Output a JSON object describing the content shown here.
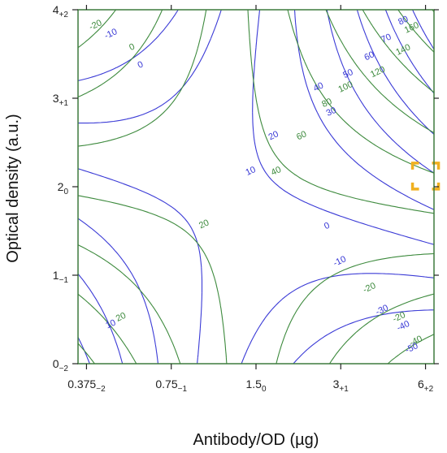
{
  "chart_data": {
    "type": "contour",
    "xlabel": "Antibody/OD (µg)",
    "ylabel": "Optical density (a.u.)",
    "x_ticks": [
      {
        "main": "0.375",
        "sub": "−2",
        "value": -2
      },
      {
        "main": "0.75",
        "sub": "−1",
        "value": -1
      },
      {
        "main": "1.5",
        "sub": "0",
        "value": 0
      },
      {
        "main": "3",
        "sub": "+1",
        "value": 1
      },
      {
        "main": "6",
        "sub": "+2",
        "value": 2
      }
    ],
    "y_ticks": [
      {
        "main": "0",
        "sub": "−2",
        "value": -2
      },
      {
        "main": "1",
        "sub": "−1",
        "value": -1
      },
      {
        "main": "2",
        "sub": "0",
        "value": 0
      },
      {
        "main": "3",
        "sub": "+1",
        "value": 1
      },
      {
        "main": "4",
        "sub": "+2",
        "value": 2
      }
    ],
    "xlim": [
      -2.1,
      2.1
    ],
    "ylim": [
      -2.0,
      2.0
    ],
    "series": [
      {
        "name": "",
        "color": "#3a3ad6",
        "levels": [
          -50,
          -40,
          -30,
          -10,
          0,
          10,
          20,
          30,
          40,
          50,
          60,
          70,
          80
        ]
      },
      {
        "name": "",
        "color": "#3d8a3d",
        "levels": [
          -40,
          -20,
          0,
          20,
          40,
          60,
          80,
          100,
          120,
          140,
          160
        ]
      }
    ],
    "contour_labels": [
      {
        "text": "-20",
        "color": "green",
        "x": -1.88,
        "y": 1.8
      },
      {
        "text": "-10",
        "color": "blue",
        "x": -1.7,
        "y": 1.7
      },
      {
        "text": "0",
        "color": "green",
        "x": -1.45,
        "y": 1.55
      },
      {
        "text": "0",
        "color": "blue",
        "x": -1.35,
        "y": 1.35
      },
      {
        "text": "80",
        "color": "blue",
        "x": 1.75,
        "y": 1.85
      },
      {
        "text": "160",
        "color": "green",
        "x": 1.85,
        "y": 1.77
      },
      {
        "text": "70",
        "color": "blue",
        "x": 1.55,
        "y": 1.65
      },
      {
        "text": "140",
        "color": "green",
        "x": 1.75,
        "y": 1.52
      },
      {
        "text": "60",
        "color": "blue",
        "x": 1.35,
        "y": 1.45
      },
      {
        "text": "120",
        "color": "green",
        "x": 1.45,
        "y": 1.27
      },
      {
        "text": "50",
        "color": "blue",
        "x": 1.1,
        "y": 1.25
      },
      {
        "text": "100",
        "color": "green",
        "x": 1.07,
        "y": 1.1
      },
      {
        "text": "40",
        "color": "blue",
        "x": 0.75,
        "y": 1.1
      },
      {
        "text": "80",
        "color": "green",
        "x": 0.85,
        "y": 0.92
      },
      {
        "text": "30",
        "color": "blue",
        "x": 0.9,
        "y": 0.82
      },
      {
        "text": "60",
        "color": "green",
        "x": 0.55,
        "y": 0.55
      },
      {
        "text": "20",
        "color": "blue",
        "x": 0.22,
        "y": 0.55
      },
      {
        "text": "40",
        "color": "green",
        "x": 0.25,
        "y": 0.15
      },
      {
        "text": "10",
        "color": "blue",
        "x": -0.05,
        "y": 0.15
      },
      {
        "text": "20",
        "color": "green",
        "x": -0.6,
        "y": -0.45
      },
      {
        "text": "0",
        "color": "blue",
        "x": 0.85,
        "y": -0.47
      },
      {
        "text": "-10",
        "color": "blue",
        "x": 1.0,
        "y": -0.87
      },
      {
        "text": "-20",
        "color": "green",
        "x": 1.35,
        "y": -1.17
      },
      {
        "text": "-30",
        "color": "blue",
        "x": 1.5,
        "y": -1.42
      },
      {
        "text": "-20",
        "color": "green",
        "x": 1.7,
        "y": -1.5
      },
      {
        "text": "-40",
        "color": "blue",
        "x": 1.75,
        "y": -1.6
      },
      {
        "text": "-40",
        "color": "green",
        "x": 1.9,
        "y": -1.77
      },
      {
        "text": "-50",
        "color": "blue",
        "x": 1.85,
        "y": -1.85
      },
      {
        "text": "20",
        "color": "green",
        "x": -1.58,
        "y": -1.5
      },
      {
        "text": "10",
        "color": "blue",
        "x": -1.7,
        "y": -1.58
      }
    ],
    "highlight": {
      "color": "#f0b020",
      "x": 2.0,
      "y": 0.12
    }
  }
}
